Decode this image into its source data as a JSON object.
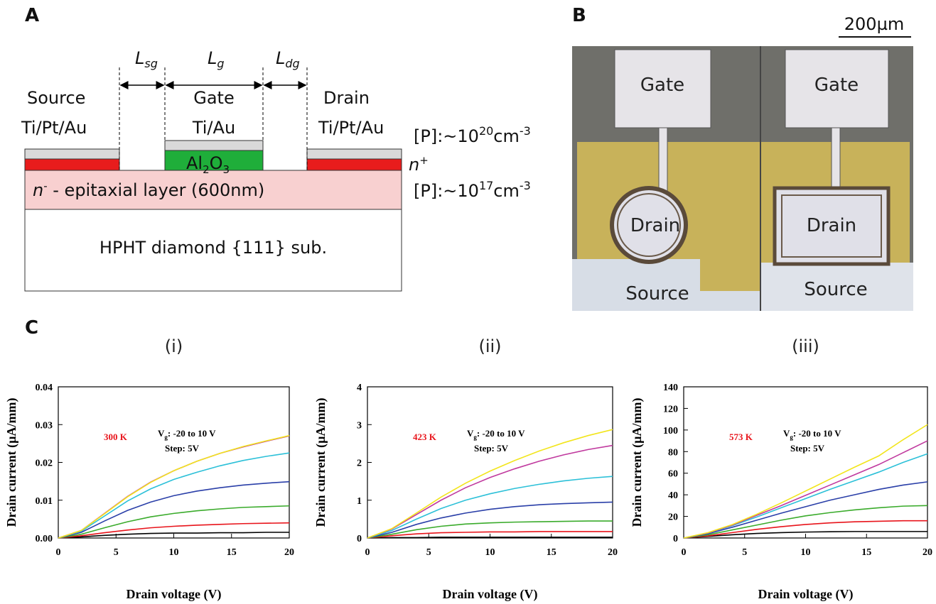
{
  "panel_a": {
    "label": "A",
    "lengths": [
      {
        "base": "L",
        "sub": "sg"
      },
      {
        "base": "L",
        "sub": "g"
      },
      {
        "base": "L",
        "sub": "dg"
      }
    ],
    "source": {
      "name": "Source",
      "metal": "Ti/Pt/Au"
    },
    "gate": {
      "name": "Gate",
      "metal": "Ti/Au",
      "oxide": [
        "Al",
        "2",
        "O",
        "3"
      ]
    },
    "drain": {
      "name": "Drain",
      "metal": "Ti/Pt/Au"
    },
    "n_plus": {
      "base": "n",
      "sup": "+"
    },
    "doping_nplus": [
      "[P]:~10",
      "20",
      "cm",
      "-3"
    ],
    "epi": [
      "n",
      "-",
      " - epitaxial layer (600nm)"
    ],
    "doping_epi": [
      "[P]:~10",
      "17",
      "cm",
      "-3"
    ],
    "substrate": "HPHT diamond {111} sub."
  },
  "panel_b": {
    "label": "B",
    "scale": "200µm",
    "gates": [
      "Gate",
      "Gate"
    ],
    "drains": [
      "Drain",
      "Drain"
    ],
    "sources": [
      "Source",
      "Source"
    ]
  },
  "panel_c_label": "C",
  "chart_data": [
    {
      "type": "line",
      "title": "(i)",
      "temperature": "300 K",
      "gate_range": [
        "V",
        "g",
        ": -20 to 10 V"
      ],
      "step": "Step: 5V",
      "xlabel": "Drain voltage (V)",
      "ylabel": "Drain current (µA/mm)",
      "x": [
        0,
        2,
        4,
        6,
        8,
        10,
        12,
        14,
        16,
        18,
        20
      ],
      "xlim": [
        0,
        20
      ],
      "xticks": [
        0,
        5,
        10,
        15,
        20
      ],
      "ylim": [
        0,
        0.04
      ],
      "yticks": [
        {
          "value": 0,
          "label": "0.00"
        },
        0.01,
        0.02,
        0.03,
        0.04
      ],
      "series": [
        {
          "color": "#000000",
          "values": [
            0,
            0.0003,
            0.0007,
            0.001,
            0.0012,
            0.0013,
            0.0013,
            0.0014,
            0.0014,
            0.0015,
            0.0015
          ]
        },
        {
          "color": "#e8141b",
          "values": [
            0,
            0.0006,
            0.0014,
            0.0021,
            0.0027,
            0.0031,
            0.0034,
            0.0036,
            0.0038,
            0.0039,
            0.004
          ]
        },
        {
          "color": "#3aab2b",
          "values": [
            0,
            0.001,
            0.0027,
            0.0043,
            0.0056,
            0.0065,
            0.0072,
            0.0077,
            0.0081,
            0.0083,
            0.0085
          ]
        },
        {
          "color": "#2a3fa8",
          "values": [
            0,
            0.0015,
            0.0045,
            0.0073,
            0.0095,
            0.0112,
            0.0124,
            0.0133,
            0.014,
            0.0145,
            0.0149
          ]
        },
        {
          "color": "#2cc0d8",
          "values": [
            0,
            0.0018,
            0.0058,
            0.0098,
            0.013,
            0.0155,
            0.0174,
            0.0191,
            0.0205,
            0.0216,
            0.0225
          ]
        },
        {
          "color": "#c0399e",
          "values": [
            0,
            0.002,
            0.0065,
            0.011,
            0.0148,
            0.0178,
            0.0203,
            0.0224,
            0.0241,
            0.0256,
            0.027
          ]
        },
        {
          "color": "#f2e51c",
          "values": [
            0,
            0.002,
            0.0064,
            0.0109,
            0.0147,
            0.0178,
            0.0203,
            0.0224,
            0.0242,
            0.0257,
            0.0271
          ]
        }
      ]
    },
    {
      "type": "line",
      "title": "(ii)",
      "temperature": "423 K",
      "gate_range": [
        "V",
        "g",
        ": -20 to 10 V"
      ],
      "step": "Step: 5V",
      "xlabel": "Drain voltage (V)",
      "ylabel": "Drain current (µA/mm)",
      "x": [
        0,
        2,
        4,
        6,
        8,
        10,
        12,
        14,
        16,
        18,
        20
      ],
      "xlim": [
        0,
        20
      ],
      "xticks": [
        0,
        5,
        10,
        15,
        20
      ],
      "ylim": [
        0,
        4
      ],
      "yticks": [
        0,
        1,
        2,
        3,
        4
      ],
      "series": [
        {
          "color": "#000000",
          "values": [
            0,
            0.01,
            0.01,
            0.02,
            0.02,
            0.02,
            0.02,
            0.02,
            0.02,
            0.02,
            0.02
          ]
        },
        {
          "color": "#e8141b",
          "values": [
            0,
            0.06,
            0.11,
            0.14,
            0.15,
            0.16,
            0.16,
            0.17,
            0.17,
            0.17,
            0.17
          ]
        },
        {
          "color": "#3aab2b",
          "values": [
            0,
            0.1,
            0.22,
            0.31,
            0.37,
            0.4,
            0.42,
            0.43,
            0.44,
            0.45,
            0.45
          ]
        },
        {
          "color": "#2a3fa8",
          "values": [
            0,
            0.15,
            0.36,
            0.53,
            0.66,
            0.76,
            0.83,
            0.88,
            0.91,
            0.93,
            0.95
          ]
        },
        {
          "color": "#2cc0d8",
          "values": [
            0,
            0.2,
            0.5,
            0.78,
            1.0,
            1.17,
            1.31,
            1.42,
            1.51,
            1.58,
            1.63
          ]
        },
        {
          "color": "#c0399e",
          "values": [
            0,
            0.24,
            0.62,
            1.0,
            1.33,
            1.6,
            1.83,
            2.03,
            2.2,
            2.34,
            2.45
          ]
        },
        {
          "color": "#f2e51c",
          "values": [
            0,
            0.25,
            0.66,
            1.08,
            1.45,
            1.77,
            2.05,
            2.3,
            2.52,
            2.71,
            2.87
          ]
        }
      ]
    },
    {
      "type": "line",
      "title": "(iii)",
      "temperature": "573 K",
      "gate_range": [
        "V",
        "g",
        ": -20 to 10 V"
      ],
      "step": "Step: 5V",
      "xlabel": "Drain voltage (V)",
      "ylabel": "Drain current (µA/mm)",
      "x": [
        0,
        2,
        4,
        6,
        8,
        10,
        12,
        14,
        16,
        18,
        20
      ],
      "xlim": [
        0,
        20
      ],
      "xticks": [
        0,
        5,
        10,
        15,
        20
      ],
      "ylim": [
        0,
        140
      ],
      "yticks": [
        0,
        20,
        40,
        60,
        80,
        100,
        120,
        140
      ],
      "series": [
        {
          "color": "#000000",
          "values": [
            0,
            1.5,
            3,
            4.2,
            5,
            5.5,
            5.8,
            6,
            6,
            6,
            6
          ]
        },
        {
          "color": "#e8141b",
          "values": [
            0,
            2,
            5,
            8,
            10.5,
            12.5,
            14,
            15,
            15.5,
            16,
            16
          ]
        },
        {
          "color": "#3aab2b",
          "values": [
            0,
            3,
            7.5,
            12,
            16.5,
            20.5,
            23.5,
            26,
            28,
            29.5,
            30
          ]
        },
        {
          "color": "#2a3fa8",
          "values": [
            0,
            4,
            10,
            16.5,
            23,
            29,
            35,
            40,
            45,
            49,
            52
          ]
        },
        {
          "color": "#2cc0d8",
          "values": [
            0,
            4.5,
            11.5,
            19.5,
            28,
            36.5,
            45,
            53,
            61,
            70,
            78
          ]
        },
        {
          "color": "#c0399e",
          "values": [
            0,
            4.7,
            12,
            21,
            30,
            39.5,
            49,
            58.5,
            68,
            79,
            90
          ]
        },
        {
          "color": "#f2e51c",
          "values": [
            0,
            5,
            12.5,
            22,
            32.5,
            43.5,
            54.5,
            65.5,
            76,
            91,
            105
          ]
        }
      ]
    }
  ]
}
